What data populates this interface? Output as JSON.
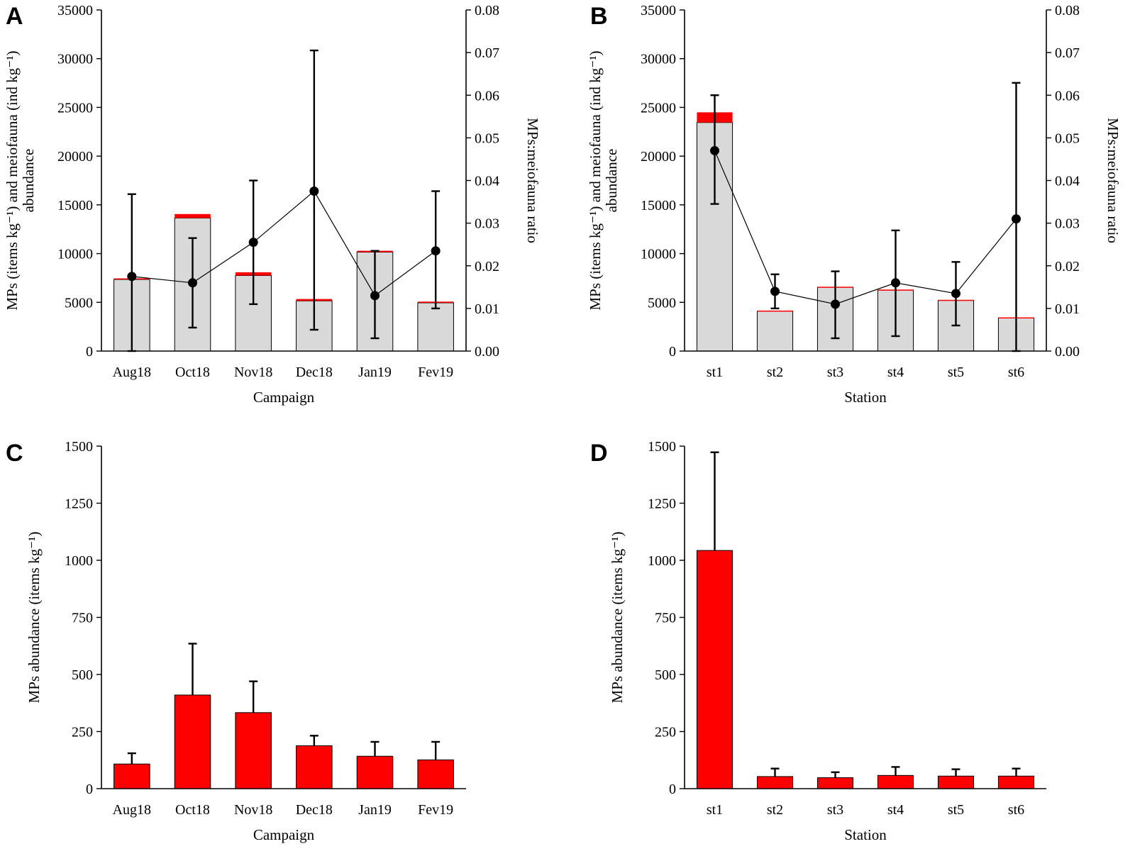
{
  "colors": {
    "grey": "#d9d9d9",
    "red": "#ff0000",
    "black": "#000000"
  },
  "chart_data": [
    {
      "panel": "A",
      "type": "bar",
      "categories": [
        "Aug18",
        "Oct18",
        "Nov18",
        "Dec18",
        "Jan19",
        "Fev19"
      ],
      "series": [
        {
          "name": "Meiofauna abundance",
          "values": [
            7350,
            13650,
            7750,
            5150,
            10150,
            4950
          ]
        },
        {
          "name": "MPs abundance",
          "values": [
            110,
            410,
            335,
            190,
            140,
            125
          ]
        }
      ],
      "ratio_series": {
        "name": "MPs:meiofauna ratio",
        "values": [
          0.0175,
          0.016,
          0.0255,
          0.0375,
          0.013,
          0.0235
        ],
        "err_low": [
          0.0,
          0.0055,
          0.011,
          0.005,
          0.003,
          0.01
        ],
        "err_high": [
          0.0368,
          0.0265,
          0.04,
          0.0705,
          0.0235,
          0.0375
        ]
      },
      "xlabel": "Campaign",
      "ylabel_line1": "MPs (items kg⁻¹) and meiofauna (ind kg⁻¹)",
      "ylabel_line2": "abundance",
      "y2label": "MPs:meiofauna ratio",
      "ylim": [
        0,
        35000
      ],
      "yticks": [
        "0",
        "5000",
        "10000",
        "15000",
        "20000",
        "25000",
        "30000",
        "35000"
      ],
      "y2lim": [
        0,
        0.08
      ],
      "y2ticks": [
        "0.00",
        "0.01",
        "0.02",
        "0.03",
        "0.04",
        "0.05",
        "0.06",
        "0.07",
        "0.08"
      ]
    },
    {
      "panel": "B",
      "type": "bar",
      "categories": [
        "st1",
        "st2",
        "st3",
        "st4",
        "st5",
        "st6"
      ],
      "series": [
        {
          "name": "Meiofauna abundance",
          "values": [
            23450,
            4100,
            6550,
            6250,
            5200,
            3400
          ]
        },
        {
          "name": "MPs abundance",
          "values": [
            1045,
            55,
            50,
            60,
            55,
            55
          ]
        }
      ],
      "ratio_series": {
        "name": "MPs:meiofauna ratio",
        "values": [
          0.047,
          0.014,
          0.011,
          0.016,
          0.0135,
          0.031
        ],
        "err_low": [
          0.0345,
          0.01,
          0.003,
          0.0035,
          0.006,
          0.0
        ],
        "err_high": [
          0.06,
          0.018,
          0.0187,
          0.0283,
          0.0209,
          0.0629
        ]
      },
      "xlabel": "Station",
      "ylabel_line1": "MPs (items kg⁻¹) and meiofauna (ind kg⁻¹)",
      "ylabel_line2": "abundance",
      "y2label": "MPs:meiofauna ratio",
      "ylim": [
        0,
        35000
      ],
      "yticks": [
        "0",
        "5000",
        "10000",
        "15000",
        "20000",
        "25000",
        "30000",
        "35000"
      ],
      "y2lim": [
        0,
        0.08
      ],
      "y2ticks": [
        "0.00",
        "0.01",
        "0.02",
        "0.03",
        "0.04",
        "0.05",
        "0.06",
        "0.07",
        "0.08"
      ]
    },
    {
      "panel": "C",
      "type": "bar",
      "categories": [
        "Aug18",
        "Oct18",
        "Nov18",
        "Dec18",
        "Jan19",
        "Fev19"
      ],
      "values": [
        108,
        410,
        333,
        188,
        142,
        126
      ],
      "err_high": [
        155,
        635,
        470,
        232,
        205,
        205
      ],
      "xlabel": "Campaign",
      "ylabel": "MPs abundance (items kg⁻¹)",
      "ylim": [
        0,
        1500
      ],
      "yticks": [
        "0",
        "250",
        "500",
        "750",
        "1000",
        "1250",
        "1500"
      ]
    },
    {
      "panel": "D",
      "type": "bar",
      "categories": [
        "st1",
        "st2",
        "st3",
        "st4",
        "st5",
        "st6"
      ],
      "values": [
        1043,
        53,
        48,
        58,
        55,
        55
      ],
      "err_high": [
        1473,
        88,
        72,
        95,
        85,
        88
      ],
      "xlabel": "Station",
      "ylabel": "MPs abundance (items kg⁻¹)",
      "ylim": [
        0,
        1500
      ],
      "yticks": [
        "0",
        "250",
        "500",
        "750",
        "1000",
        "1250",
        "1500"
      ]
    }
  ]
}
